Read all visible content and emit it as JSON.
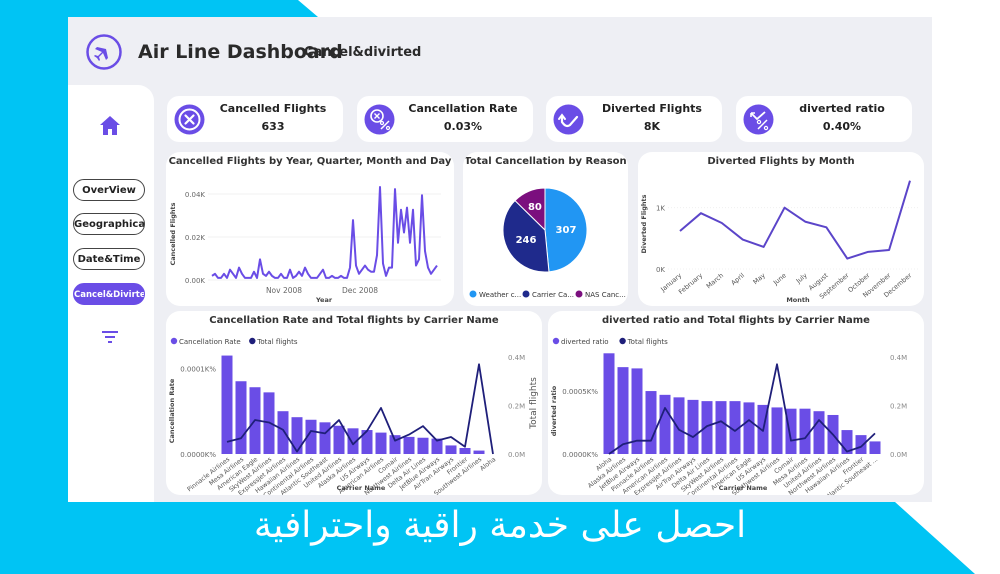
{
  "header": {
    "title": "Air Line Dashboard",
    "subtitle": "Cancel&divirted"
  },
  "sidebar": {
    "items": [
      {
        "label": "OverView",
        "active": false
      },
      {
        "label": "Geographical",
        "active": false
      },
      {
        "label": "Date&Time",
        "active": false
      },
      {
        "label": "Cancel&Divirted",
        "active": true
      }
    ]
  },
  "kpis": [
    {
      "label": "Cancelled Flights",
      "value": "633",
      "icon": "x-circle-icon"
    },
    {
      "label": "Cancellation Rate",
      "value": "0.03%",
      "icon": "cancel-percent-icon"
    },
    {
      "label": "Diverted Flights",
      "value": "8K",
      "icon": "diverted-arrow-icon"
    },
    {
      "label": "diverted ratio",
      "value": "0.40%",
      "icon": "diverted-percent-icon"
    }
  ],
  "colors": {
    "accent": "#6a4de6",
    "bar": "#6a4de6",
    "line_dark": "#1f1f7a",
    "pie_weather": "#2196f3",
    "pie_carrier": "#1f2a8c",
    "pie_nas": "#7b0f7e",
    "banner": "#00c4f4"
  },
  "banner": {
    "text": "احصل على خدمة راقية واحترافية"
  },
  "chart_data": [
    {
      "type": "line",
      "title": "Cancelled Flights by Year, Quarter, Month and Day",
      "xlabel": "Year",
      "ylabel": "Cancelled Flights",
      "y_ticks": [
        "0.00K",
        "0.02K",
        "0.04K"
      ],
      "x_ticks": [
        "Nov 2008",
        "Dec 2008"
      ],
      "ylim": [
        0,
        45
      ],
      "values": [
        2,
        3,
        1,
        1,
        3,
        1,
        5,
        3,
        1,
        6,
        3,
        1,
        1,
        1,
        4,
        1,
        10,
        3,
        2,
        4,
        2,
        1,
        1,
        3,
        1,
        1,
        5,
        1,
        2,
        4,
        2,
        6,
        3,
        1,
        1,
        1,
        3,
        5,
        1,
        1,
        2,
        1,
        1,
        2,
        1,
        1,
        6,
        29,
        7,
        3,
        5,
        7,
        5,
        4,
        4,
        12,
        45,
        8,
        2,
        6,
        6,
        44,
        18,
        34,
        23,
        35,
        18,
        34,
        7,
        10,
        41,
        14,
        6,
        3,
        5,
        7
      ],
      "grid": true
    },
    {
      "type": "pie",
      "title": "Total Cancellation by Reason",
      "labels": [
        "Weather c...",
        "Carrier Ca...",
        "NAS Canc..."
      ],
      "values": [
        307,
        246,
        80
      ],
      "legend_position": "bottom"
    },
    {
      "type": "line",
      "title": "Diverted Flights by Month",
      "xlabel": "Month",
      "ylabel": "Diverted Flights",
      "categories": [
        "January",
        "February",
        "March",
        "April",
        "May",
        "June",
        "July",
        "August",
        "September",
        "October",
        "November",
        "December"
      ],
      "values": [
        620,
        910,
        750,
        480,
        360,
        1000,
        770,
        680,
        170,
        280,
        310,
        1440
      ],
      "y_ticks": [
        "0K",
        "1K"
      ],
      "ylim": [
        0,
        1500
      ]
    },
    {
      "type": "bar",
      "title": "Cancellation Rate and Total flights by Carrier Name",
      "xlabel": "Carrier Name",
      "ylabel": "Cancellation Rate",
      "y2label": "Total flights",
      "legend": [
        "Cancellation Rate",
        "Total flights"
      ],
      "categories": [
        "Pinnacle Airlines",
        "Mesa Airlines",
        "American Eagle",
        "SkyWest Airlines",
        "ExpressJet Airlines",
        "Hawaiian Airlines",
        "Continental Airlines",
        "Atlantic Southeast",
        "United Airlines",
        "Alaska Airlines",
        "US Airways",
        "American Airlines",
        "Comair",
        "Northwest Airlines",
        "Delta Air Lines",
        "JetBlue Airways",
        "AirTran Airways",
        "Frontier",
        "Southwest Airlines",
        "Aloha"
      ],
      "series": [
        {
          "name": "Cancellation Rate",
          "axis": "left",
          "values": [
            0.000115,
            8.5e-05,
            7.8e-05,
            7.2e-05,
            5e-05,
            4.3e-05,
            4e-05,
            3.7e-05,
            3.3e-05,
            3e-05,
            2.8e-05,
            2.5e-05,
            2.2e-05,
            2e-05,
            1.9e-05,
            1.8e-05,
            1e-05,
            7e-06,
            4e-06,
            0.0
          ]
        },
        {
          "name": "Total flights",
          "axis": "right",
          "values": [
            50000,
            65000,
            140000,
            130000,
            100000,
            10000,
            95000,
            85000,
            140000,
            40000,
            95000,
            190000,
            55000,
            80000,
            115000,
            55000,
            70000,
            30000,
            370000,
            0
          ]
        }
      ],
      "y_ticks": [
        "0.0000K%",
        "0.0001K%"
      ],
      "y2_ticks": [
        "0.0M",
        "0.2M",
        "0.4M"
      ]
    },
    {
      "type": "bar",
      "title": "diverted ratio and Total flights by Carrier Name",
      "xlabel": "Carrier Name",
      "ylabel": "diverted ratio",
      "y2label": "",
      "legend": [
        "diverted ratio",
        "Total flights"
      ],
      "categories": [
        "Aloha",
        "Alaska Airlines",
        "JetBlue Airways",
        "Pinnacle Airlines",
        "American Airlines",
        "ExpressJet Airlines",
        "AirTran Airways",
        "Delta Air Lines",
        "SkyWest Airlines",
        "Continental Airlines",
        "American Eagle",
        "US Airways",
        "Southwest Airlines",
        "Comair",
        "Mesa Airlines",
        "United Airlines",
        "Northwest Airlines",
        "Hawaiian Airlines",
        "Frontier",
        "Atlantic Southeast ..."
      ],
      "series": [
        {
          "name": "diverted ratio",
          "axis": "left",
          "values": [
            0.0008,
            0.00069,
            0.00068,
            0.0005,
            0.00047,
            0.00045,
            0.00043,
            0.00042,
            0.00042,
            0.00042,
            0.00041,
            0.00039,
            0.00037,
            0.00036,
            0.00036,
            0.00034,
            0.00031,
            0.00019,
            0.00015,
            0.0001
          ]
        },
        {
          "name": "Total flights",
          "axis": "right",
          "values": [
            0,
            40000,
            55000,
            55000,
            190000,
            100000,
            70000,
            115000,
            135000,
            95000,
            140000,
            95000,
            370000,
            55000,
            65000,
            140000,
            80000,
            10000,
            30000,
            85000
          ]
        }
      ],
      "y_ticks": [
        "0.0000K%",
        "0.0005K%"
      ],
      "y2_ticks": [
        "0.0M",
        "0.2M",
        "0.4M"
      ]
    }
  ]
}
